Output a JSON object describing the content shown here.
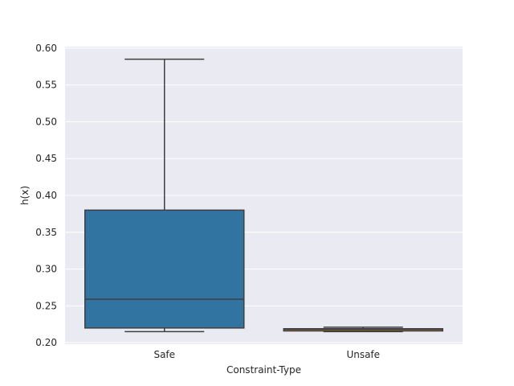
{
  "chart_data": {
    "type": "box",
    "title": "",
    "xlabel": "Constraint-Type",
    "ylabel": "h(x)",
    "ylim": [
      0.198,
      0.602
    ],
    "yticks": [
      0.2,
      0.25,
      0.3,
      0.35,
      0.4,
      0.45,
      0.5,
      0.55,
      0.6
    ],
    "ytick_labels": [
      "0.20",
      "0.25",
      "0.30",
      "0.35",
      "0.40",
      "0.45",
      "0.50",
      "0.55",
      "0.60"
    ],
    "grid": true,
    "categories": [
      "Safe",
      "Unsafe"
    ],
    "boxes": [
      {
        "category": "Safe",
        "whisker_low": 0.215,
        "q1": 0.22,
        "median": 0.259,
        "q3": 0.38,
        "whisker_high": 0.585,
        "color": "#3274a1"
      },
      {
        "category": "Unsafe",
        "whisker_low": 0.215,
        "q1": 0.216,
        "median": 0.218,
        "q3": 0.219,
        "whisker_high": 0.221,
        "color": "#e1812c"
      }
    ],
    "colors": {
      "background": "#eaeaf2",
      "grid": "#ffffff",
      "line": "#3f3f3f"
    }
  }
}
